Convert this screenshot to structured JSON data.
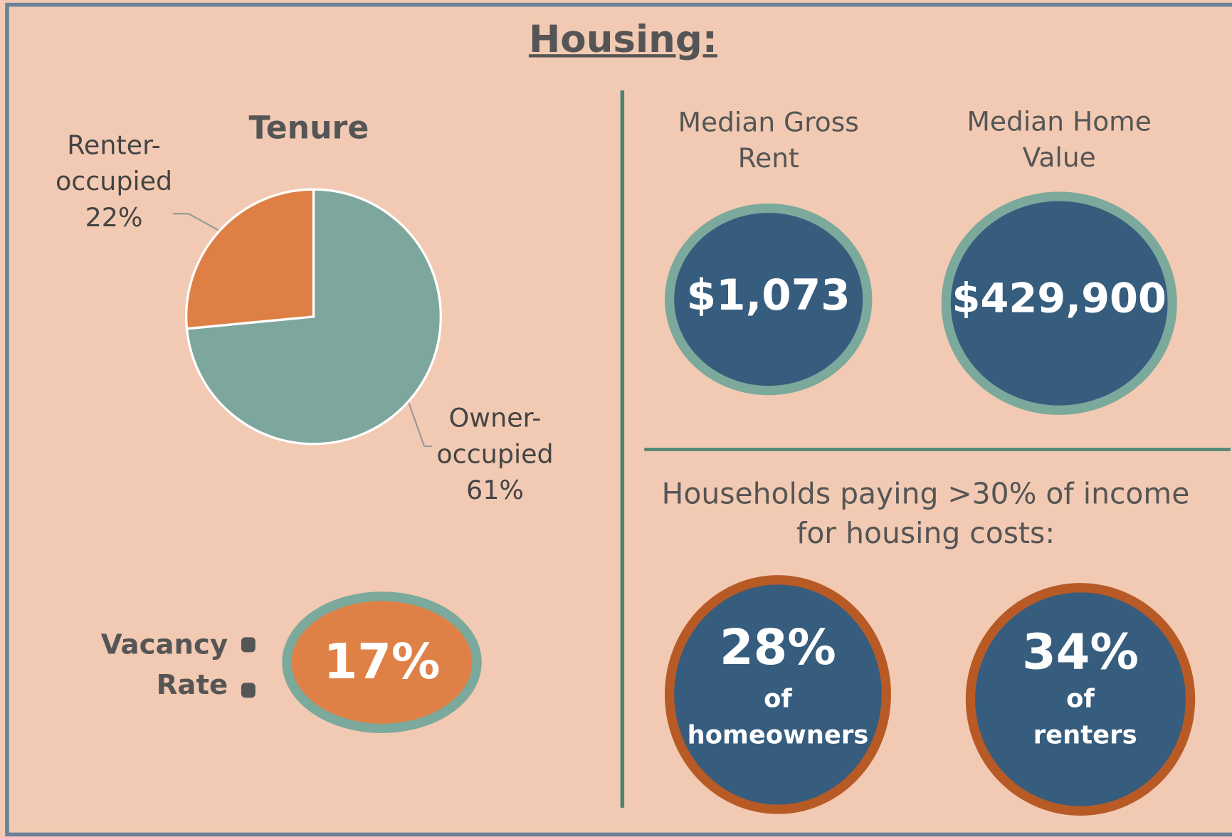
{
  "title": "Housing:",
  "chart_data": {
    "type": "pie",
    "title": "Tenure",
    "categories": [
      "Owner-occupied",
      "Renter-occupied"
    ],
    "values": [
      61,
      22
    ],
    "value_labels": [
      "61%",
      "22%"
    ],
    "colors": [
      "#7da79c",
      "#de8046"
    ]
  },
  "median_rent": {
    "label": "Median Gross Rent",
    "value": "$1,073"
  },
  "median_home_value": {
    "label": "Median Home Value",
    "value": "$429,900"
  },
  "cost_burden": {
    "heading": "Households paying >30% of income for housing costs:",
    "homeowners": {
      "value": "28%",
      "label": "of homeowners"
    },
    "renters": {
      "value": "34%",
      "label": "of renters"
    }
  },
  "vacancy": {
    "label": "Vacancy Rate",
    "value": "17%"
  }
}
